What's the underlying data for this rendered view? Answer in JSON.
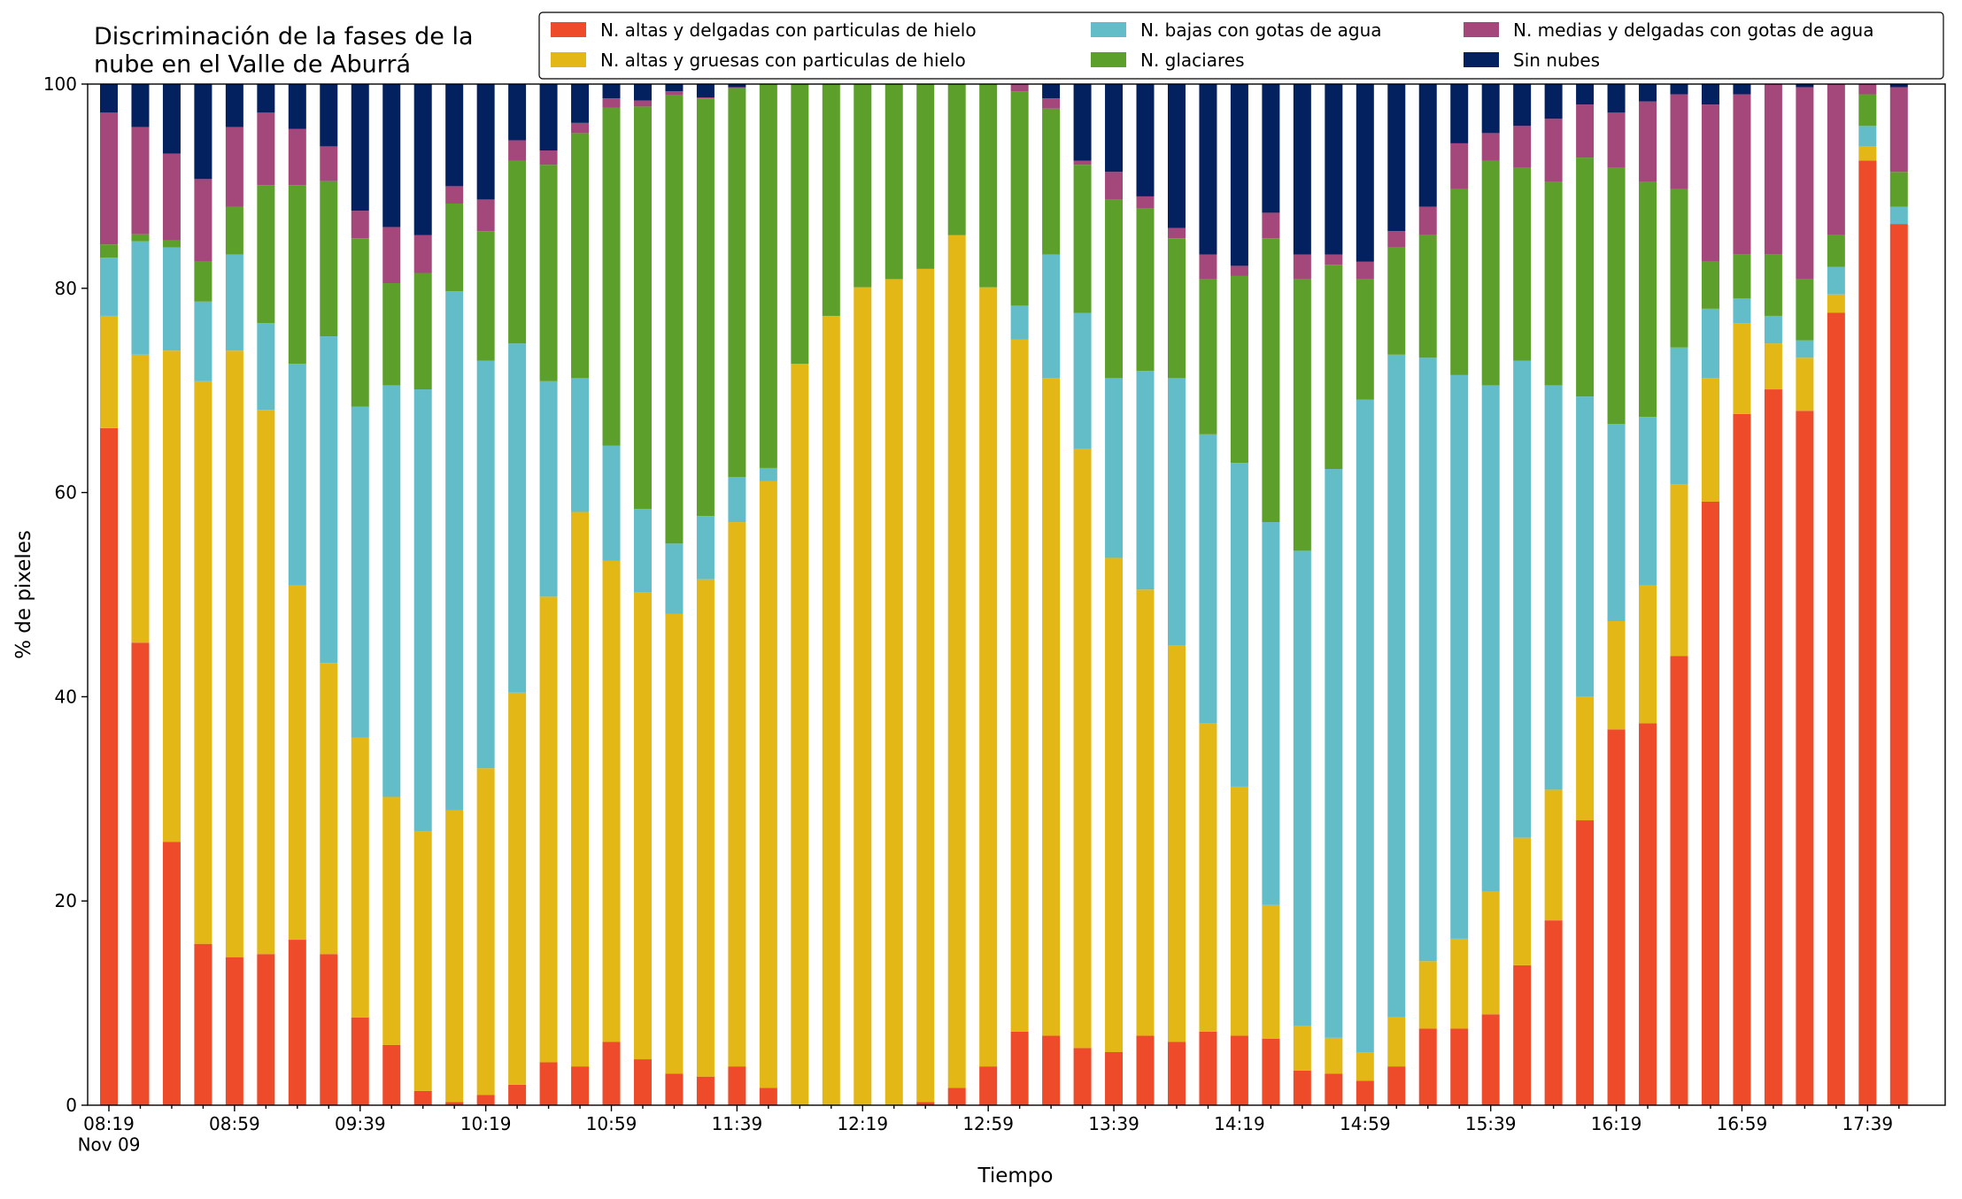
{
  "chart_data": {
    "type": "stacked_bar",
    "title": "Discriminación de la fases de la\nnube en el Valle de Aburrá",
    "xlabel": "Tiempo",
    "ylabel": "% de pixeles",
    "categories": [
      "08:19\nNov 09",
      null,
      null,
      null,
      "08:59",
      null,
      null,
      null,
      "09:39",
      null,
      null,
      null,
      "10:19",
      null,
      null,
      null,
      "10:59",
      null,
      null,
      null,
      "11:39",
      null,
      null,
      null,
      "12:19",
      null,
      null,
      null,
      "12:59",
      null,
      null,
      null,
      "13:39",
      null,
      null,
      null,
      "14:19",
      null,
      null,
      null,
      "14:59",
      null,
      null,
      null,
      "15:39",
      null,
      null,
      null,
      "16:19",
      null,
      null,
      null,
      "16:59",
      null,
      null,
      null,
      "17:39",
      null
    ],
    "ylim": [
      0,
      100
    ],
    "yticks": [
      0,
      20,
      40,
      60,
      80,
      100
    ],
    "legend": "top-right",
    "series": [
      {
        "name": "N. altas y delgadas con particulas de hielo",
        "color": "#ee4b2b",
        "values": [
          66.3,
          45.3,
          25.8,
          15.8,
          14.5,
          14.8,
          16.2,
          14.8,
          8.6,
          5.9,
          1.4,
          0.3,
          1.0,
          2.0,
          4.2,
          3.8,
          6.2,
          4.5,
          3.1,
          2.8,
          3.8,
          1.7,
          0,
          0,
          0,
          0,
          0.3,
          1.7,
          3.8,
          7.2,
          6.8,
          5.6,
          5.2,
          6.8,
          6.2,
          7.2,
          6.8,
          6.5,
          3.4,
          3.1,
          2.4,
          3.8,
          7.5,
          7.5,
          8.9,
          13.7,
          18.1,
          27.9,
          36.8,
          37.4,
          44.0,
          59.1,
          67.7,
          70.1,
          68.0,
          77.6,
          92.5,
          86.3
        ]
      },
      {
        "name": "N. altas y gruesas con particulas de hielo",
        "color": "#e3b716",
        "values": [
          11.0,
          28.2,
          48.1,
          55.1,
          59.4,
          53.3,
          34.7,
          28.5,
          27.4,
          24.3,
          25.4,
          28.6,
          32.0,
          38.4,
          45.6,
          54.3,
          47.1,
          45.7,
          45.0,
          48.7,
          53.3,
          59.4,
          72.6,
          77.3,
          80.1,
          80.9,
          81.6,
          83.5,
          76.3,
          67.8,
          64.4,
          58.7,
          48.4,
          43.7,
          38.8,
          30.2,
          24.4,
          13.1,
          4.4,
          3.5,
          2.8,
          4.8,
          6.6,
          8.8,
          12.0,
          12.5,
          12.8,
          12.1,
          10.6,
          13.5,
          16.8,
          12.1,
          8.9,
          4.5,
          5.2,
          1.8,
          1.4,
          0
        ]
      },
      {
        "name": "N. bajas con gotas de agua",
        "color": "#63bdc8",
        "values": [
          5.7,
          11.1,
          10.1,
          7.8,
          9.4,
          8.5,
          21.7,
          32.0,
          32.4,
          40.3,
          43.3,
          50.8,
          39.9,
          34.2,
          21.1,
          13.1,
          11.3,
          8.2,
          6.9,
          6.2,
          4.4,
          1.3,
          0,
          0,
          0,
          0,
          0,
          0,
          0,
          3.3,
          12.1,
          13.3,
          17.6,
          21.4,
          26.2,
          28.3,
          31.7,
          37.5,
          46.5,
          55.7,
          63.9,
          64.9,
          59.1,
          55.2,
          49.6,
          46.7,
          39.6,
          29.4,
          19.3,
          16.5,
          13.4,
          6.8,
          2.4,
          2.7,
          1.7,
          2.7,
          2.0,
          1.7
        ]
      },
      {
        "name": "N. glaciares",
        "color": "#5c9f2b",
        "values": [
          1.3,
          0.7,
          0.7,
          3.9,
          4.7,
          13.5,
          17.5,
          15.2,
          16.5,
          10.0,
          11.4,
          8.6,
          12.7,
          17.9,
          21.2,
          24.0,
          33.1,
          39.4,
          43.9,
          40.9,
          38.1,
          37.6,
          27.4,
          22.7,
          19.9,
          19.1,
          18.1,
          14.8,
          19.9,
          21.0,
          14.3,
          14.5,
          17.5,
          15.9,
          13.7,
          15.2,
          18.3,
          27.8,
          26.6,
          20.0,
          11.8,
          10.5,
          12.0,
          18.2,
          22.0,
          18.9,
          19.9,
          23.4,
          25.1,
          23.0,
          15.5,
          4.6,
          4.3,
          6.0,
          6.0,
          3.1,
          3.1,
          3.4
        ]
      },
      {
        "name": "N. medias y delgadas con gotas de agua",
        "color": "#a4477b",
        "values": [
          12.9,
          10.5,
          8.5,
          8.1,
          7.8,
          7.1,
          5.5,
          3.4,
          2.7,
          5.5,
          3.7,
          1.7,
          3.1,
          2.0,
          1.4,
          1.0,
          0.9,
          0.6,
          0.4,
          0.1,
          0.1,
          0,
          0,
          0,
          0,
          0,
          0,
          0,
          0,
          0.7,
          1.0,
          0.4,
          2.7,
          1.2,
          1.0,
          2.4,
          1.0,
          2.5,
          2.4,
          1.0,
          1.7,
          1.6,
          2.8,
          4.5,
          2.7,
          4.1,
          6.2,
          5.2,
          5.4,
          7.9,
          9.3,
          15.4,
          15.7,
          16.7,
          18.8,
          14.8,
          1.0,
          8.3
        ]
      },
      {
        "name": "Sin nubes",
        "color": "#03205f",
        "values": [
          2.8,
          4.2,
          6.8,
          9.3,
          4.2,
          2.8,
          4.4,
          6.1,
          12.4,
          14.0,
          14.8,
          10.0,
          11.3,
          5.5,
          6.5,
          3.8,
          1.4,
          1.6,
          0.7,
          1.3,
          0.3,
          0,
          0,
          0,
          0,
          0,
          0,
          0,
          0,
          0,
          1.4,
          7.5,
          8.6,
          11.0,
          14.1,
          16.7,
          17.8,
          12.6,
          16.7,
          16.7,
          17.4,
          14.4,
          12.0,
          5.8,
          4.8,
          4.1,
          3.4,
          2.0,
          2.8,
          1.7,
          1.0,
          2.0,
          1.0,
          0,
          0.3,
          0,
          0,
          0.3
        ]
      }
    ]
  }
}
